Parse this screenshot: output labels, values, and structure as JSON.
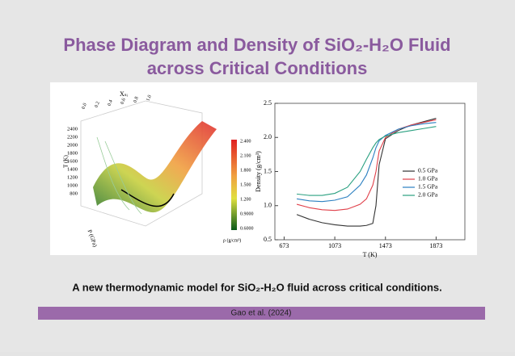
{
  "title_line1": "Phase Diagram and Density of SiO₂-H₂O Fluid",
  "title_line2": "across Critical Conditions",
  "caption": "A new thermodynamic model for SiO₂-H₂O fluid across critical conditions.",
  "footer": "Gao et al. (2024)",
  "figure3d": {
    "x_axis_label": "Xₛᵢ",
    "x_ticks": [
      "0.0",
      "0.2",
      "0.4",
      "0.6",
      "0.8",
      "1.0"
    ],
    "t_axis_label": "T (K)",
    "t_ticks": [
      "2400",
      "2200",
      "2000",
      "1800",
      "1600",
      "1400",
      "1200",
      "1000",
      "800"
    ],
    "p_axis_label": "P (GPa)",
    "colorbar_label": "ρ (g/cm³)",
    "colorbar_ticks": [
      "2.400",
      "2.100",
      "1.800",
      "1.500",
      "1.200",
      "0.9000",
      "0.6000"
    ]
  },
  "chart_data": {
    "type": "line",
    "xlabel": "T (K)",
    "ylabel": "Density (g/cm³)",
    "x": [
      773,
      873,
      973,
      1073,
      1173,
      1273,
      1323,
      1373,
      1398,
      1423,
      1473,
      1573,
      1673,
      1773,
      1873
    ],
    "series": [
      {
        "name": "0.5 GPa",
        "color": "#333333",
        "values": [
          0.87,
          0.8,
          0.75,
          0.72,
          0.7,
          0.7,
          0.71,
          0.74,
          1.0,
          1.6,
          1.98,
          2.1,
          2.18,
          2.23,
          2.28
        ]
      },
      {
        "name": "1.0 GPa",
        "color": "#e0404a",
        "values": [
          1.02,
          0.97,
          0.94,
          0.93,
          0.95,
          1.02,
          1.1,
          1.3,
          1.5,
          1.8,
          2.0,
          2.12,
          2.18,
          2.22,
          2.26
        ]
      },
      {
        "name": "1.5 GPa",
        "color": "#2a7fc0",
        "values": [
          1.1,
          1.07,
          1.06,
          1.08,
          1.13,
          1.3,
          1.45,
          1.7,
          1.85,
          1.95,
          2.03,
          2.12,
          2.17,
          2.2,
          2.22
        ]
      },
      {
        "name": "2.0 GPa",
        "color": "#2aa080",
        "values": [
          1.17,
          1.15,
          1.15,
          1.18,
          1.27,
          1.5,
          1.68,
          1.85,
          1.92,
          1.97,
          2.02,
          2.07,
          2.1,
          2.13,
          2.16
        ]
      }
    ],
    "xlim": [
      600,
      2100
    ],
    "xticks": [
      673,
      1073,
      1473,
      1873
    ],
    "ylim": [
      0.5,
      2.5
    ],
    "yticks": [
      0.5,
      {
        "value": 1,
        "label": "1.0"
      },
      1.5,
      {
        "value": 2,
        "label": "2.0"
      },
      2.5
    ],
    "legend": "right"
  }
}
